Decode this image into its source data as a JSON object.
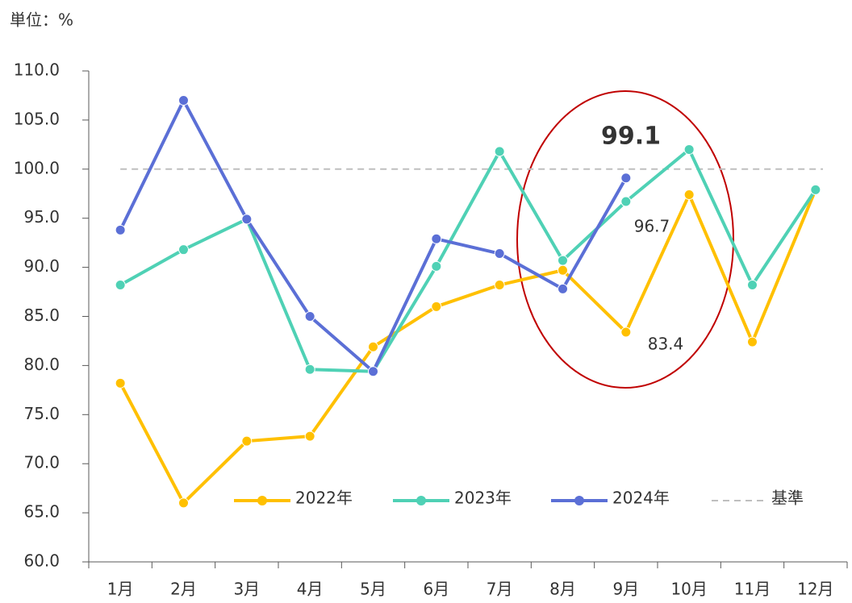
{
  "chart_data": {
    "type": "line",
    "y_label": "単位：%",
    "categories": [
      "1月",
      "2月",
      "3月",
      "4月",
      "5月",
      "6月",
      "7月",
      "8月",
      "9月",
      "10月",
      "11月",
      "12月"
    ],
    "series": [
      {
        "name": "2022年",
        "color": "#ffc000",
        "values": [
          78.2,
          66.0,
          72.3,
          72.8,
          81.9,
          86.0,
          88.2,
          89.7,
          83.4,
          97.4,
          82.4,
          97.9
        ]
      },
      {
        "name": "2023年",
        "color": "#4fd1b5",
        "values": [
          88.2,
          91.8,
          94.9,
          79.6,
          79.4,
          90.1,
          101.8,
          90.7,
          96.7,
          102.0,
          88.2,
          97.9
        ]
      },
      {
        "name": "2024年",
        "color": "#5b6fd6",
        "values": [
          93.8,
          107.0,
          94.9,
          85.0,
          79.4,
          92.9,
          91.4,
          87.8,
          99.1,
          null,
          null,
          null
        ]
      }
    ],
    "reference_line": {
      "name": "基準",
      "value": 100,
      "color": "#bfbfbf"
    },
    "ylim": [
      60,
      110
    ],
    "yticks": [
      {
        "value": 60,
        "label": "60.0"
      },
      {
        "value": 65,
        "label": "65.0"
      },
      {
        "value": 70,
        "label": "70.0"
      },
      {
        "value": 75,
        "label": "75.0"
      },
      {
        "value": 80,
        "label": "80.0"
      },
      {
        "value": 85,
        "label": "85.0"
      },
      {
        "value": 90,
        "label": "90.0"
      },
      {
        "value": 95,
        "label": "95.0"
      },
      {
        "value": 100,
        "label": "100.0"
      },
      {
        "value": 105,
        "label": "105.0"
      },
      {
        "value": 110,
        "label": "110.0"
      }
    ]
  }
}
